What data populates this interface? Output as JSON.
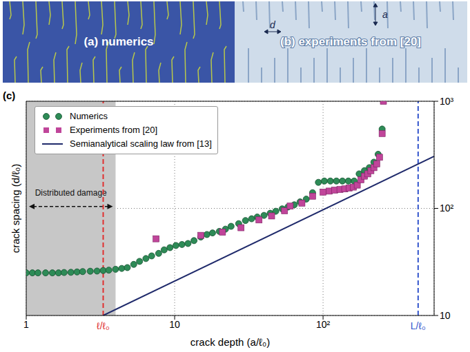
{
  "panels": [
    {
      "label": "(a) numerics"
    },
    {
      "label": "(b) experiments from [20]",
      "markers": [
        "a",
        "d"
      ]
    }
  ],
  "chart_data": {
    "type": "scatter",
    "panel_label": "(c)",
    "x_label": "crack depth (a/ℓ₀)",
    "y_label": "crack spacing (d/ℓ₀)",
    "log": true,
    "grid": true,
    "legend": "upper left",
    "xlim": [
      1,
      560
    ],
    "ylim": [
      10,
      1000
    ],
    "xticks": [
      1,
      10,
      {
        "value": 100,
        "label": "10²"
      }
    ],
    "yticks": [
      10,
      {
        "value": 100,
        "label": "10²"
      },
      {
        "value": 1000,
        "label": "10³"
      }
    ],
    "series": [
      {
        "name": "Numerics",
        "type": "scatter",
        "marker": "circle",
        "color": "#2e8b57",
        "x": [
          1,
          1.1,
          1.2,
          1.35,
          1.5,
          1.65,
          1.8,
          2,
          2.2,
          2.4,
          2.7,
          3,
          3.3,
          3.6,
          4,
          4.4,
          4.8,
          5.3,
          5.8,
          6.4,
          7,
          7.8,
          8.5,
          9.3,
          10.2,
          11.2,
          12.3,
          13.5,
          15,
          16.5,
          18,
          20,
          22,
          24,
          27,
          30,
          33,
          36,
          40,
          44,
          48,
          53,
          58,
          64,
          70,
          77,
          85,
          93,
          102,
          112,
          123,
          135,
          148,
          162,
          175,
          190,
          205,
          220,
          235,
          250
        ],
        "values": [
          25,
          25,
          25,
          25,
          25,
          25,
          25.2,
          25.3,
          25.5,
          25.7,
          25.9,
          26,
          26.3,
          26.5,
          27,
          27.5,
          28,
          30,
          32,
          34,
          36,
          38,
          41,
          43,
          45,
          46,
          47,
          50,
          54,
          57,
          59,
          61,
          64,
          68,
          72,
          77,
          80,
          83,
          86,
          90,
          94,
          99,
          103,
          108,
          115,
          122,
          140,
          175,
          180,
          180,
          180,
          180,
          180,
          180,
          210,
          225,
          240,
          270,
          320,
          550
        ]
      },
      {
        "name": "Experiments from [20]",
        "type": "scatter",
        "marker": "square",
        "color": "#c0459a",
        "x": [
          7.5,
          15,
          21,
          28,
          37,
          45,
          55,
          60,
          72,
          85,
          100,
          110,
          120,
          130,
          140,
          150,
          160,
          170,
          180,
          190,
          200,
          210,
          220,
          230,
          240,
          250,
          255
        ],
        "values": [
          52,
          56,
          60,
          66,
          78,
          85,
          95,
          105,
          112,
          130,
          142,
          145,
          148,
          150,
          152,
          155,
          158,
          165,
          185,
          200,
          210,
          225,
          240,
          260,
          300,
          500,
          1000
        ]
      },
      {
        "name": "Semianalytical scaling law from [13]",
        "type": "line",
        "line_style": "solid",
        "color": "#1f2a6b",
        "x": [
          3.3,
          560
        ],
        "values": [
          10,
          306
        ]
      }
    ],
    "annotations": [
      {
        "text": "Distributed damage",
        "x_range": [
          1,
          4
        ]
      },
      {
        "text": "ℓ/ℓ₀",
        "x": 3.3,
        "color": "#e03030",
        "line_style": "dashed"
      },
      {
        "text": "L/ℓ₀",
        "x": 437,
        "color": "#3355cc",
        "line_style": "dashed"
      }
    ]
  }
}
